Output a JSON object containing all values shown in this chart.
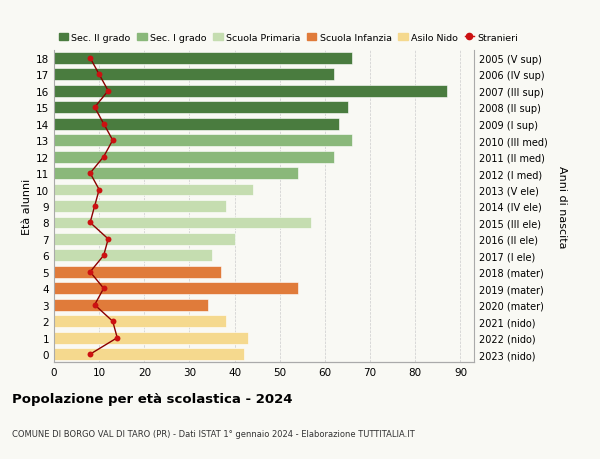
{
  "ages": [
    18,
    17,
    16,
    15,
    14,
    13,
    12,
    11,
    10,
    9,
    8,
    7,
    6,
    5,
    4,
    3,
    2,
    1,
    0
  ],
  "labels_right": [
    "2005 (V sup)",
    "2006 (IV sup)",
    "2007 (III sup)",
    "2008 (II sup)",
    "2009 (I sup)",
    "2010 (III med)",
    "2011 (II med)",
    "2012 (I med)",
    "2013 (V ele)",
    "2014 (IV ele)",
    "2015 (III ele)",
    "2016 (II ele)",
    "2017 (I ele)",
    "2018 (mater)",
    "2019 (mater)",
    "2020 (mater)",
    "2021 (nido)",
    "2022 (nido)",
    "2023 (nido)"
  ],
  "bar_values": [
    66,
    62,
    87,
    65,
    63,
    66,
    62,
    54,
    44,
    38,
    57,
    40,
    35,
    37,
    54,
    34,
    38,
    43,
    42
  ],
  "bar_colors": [
    "#4a7c3f",
    "#4a7c3f",
    "#4a7c3f",
    "#4a7c3f",
    "#4a7c3f",
    "#8ab87a",
    "#8ab87a",
    "#8ab87a",
    "#c5ddb0",
    "#c5ddb0",
    "#c5ddb0",
    "#c5ddb0",
    "#c5ddb0",
    "#e07b3a",
    "#e07b3a",
    "#e07b3a",
    "#f5d98e",
    "#f5d98e",
    "#f5d98e"
  ],
  "stranieri": [
    8,
    10,
    12,
    9,
    11,
    13,
    11,
    8,
    10,
    9,
    8,
    12,
    11,
    8,
    11,
    9,
    13,
    14,
    8
  ],
  "xlim": [
    0,
    93
  ],
  "xlabel_ticks": [
    0,
    10,
    20,
    30,
    40,
    50,
    60,
    70,
    80,
    90
  ],
  "ylabel_left": "Età alunni",
  "ylabel_right": "Anni di nascita",
  "title": "Popolazione per età scolastica - 2024",
  "subtitle": "COMUNE DI BORGO VAL DI TARO (PR) - Dati ISTAT 1° gennaio 2024 - Elaborazione TUTTITALIA.IT",
  "legend_labels": [
    "Sec. II grado",
    "Sec. I grado",
    "Scuola Primaria",
    "Scuola Infanzia",
    "Asilo Nido",
    "Stranieri"
  ],
  "legend_colors": [
    "#4a7c3f",
    "#8ab87a",
    "#c5ddb0",
    "#e07b3a",
    "#f5d98e",
    "#cc0000"
  ],
  "bg_color": "#f9f9f4",
  "grid_color": "#cccccc"
}
